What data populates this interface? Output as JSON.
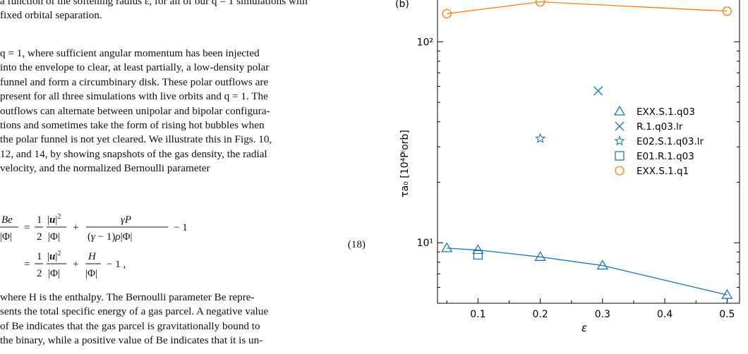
{
  "text": {
    "caption_line1": "a function of the softening radius ε, for all of our q = 1 simulations with",
    "caption_line2": "fixed orbital separation.",
    "para1_lines": [
      "q = 1, where sufficient angular momentum has been injected",
      "into the envelope to clear, at least partially, a low-density polar",
      "funnel and form a circumbinary disk. These polar outflows are",
      "present for all three simulations with live orbits and q = 1. The",
      "outflows can alternate between unipolar and bipolar configura-",
      "tions and sometimes take the form of rising hot bubbles when",
      "the polar funnel is not yet cleared. We illustrate this in Figs. 10,",
      "12, and 14, by showing snapshots of the gas density, the radial",
      "velocity, and the normalized Bernoulli parameter"
    ],
    "eq_number": "(18)",
    "para2_lines": [
      "where H is the enthalpy. The Bernoulli parameter Be repre-",
      "sents the total specific energy of a gas parcel. A negative value",
      "of Be indicates that the gas parcel is gravitationally bound to",
      "the binary, while a positive value of Be indicates that it is un-"
    ]
  },
  "chart_data": {
    "type": "scatter",
    "panel_label": "(b)",
    "xlabel": "ε",
    "ylabel": "τa₀ [10⁴Pⁱorb]",
    "xlim": [
      0.035,
      0.52
    ],
    "ylim": [
      5.0,
      175
    ],
    "yscale": "log",
    "x_ticks": [
      0.1,
      0.2,
      0.3,
      0.4,
      0.5
    ],
    "x_tick_labels": [
      "0.1",
      "0.2",
      "0.3",
      "0.4",
      "0.5"
    ],
    "y_ticks": [
      10,
      100
    ],
    "y_tick_labels": [
      "10¹",
      "10²"
    ],
    "legend_position": "right",
    "colors": {
      "blue": "#1f77b4",
      "orange": "#ff7f0e"
    },
    "series": [
      {
        "name": "EXX.S.1.q03",
        "marker": "triangle",
        "color": "#1f77b4",
        "line": true,
        "x": [
          0.05,
          0.1,
          0.2,
          0.3,
          0.5
        ],
        "y": [
          9.4,
          9.2,
          8.5,
          7.7,
          5.5
        ]
      },
      {
        "name": "R.1.q03.lr",
        "marker": "x",
        "color": "#1f77b4",
        "line": false,
        "x": [
          0.293
        ],
        "y": [
          57
        ]
      },
      {
        "name": "E02.S.1.q03.lr",
        "marker": "star",
        "color": "#1f77b4",
        "line": false,
        "x": [
          0.2
        ],
        "y": [
          33
        ]
      },
      {
        "name": "E01.R.1.q03",
        "marker": "square",
        "color": "#1f77b4",
        "line": false,
        "x": [
          0.1
        ],
        "y": [
          8.7
        ]
      },
      {
        "name": "EXX.S.1.q1",
        "marker": "circle",
        "color": "#ff7f0e",
        "line": true,
        "x": [
          0.05,
          0.2,
          0.5
        ],
        "y": [
          138,
          158,
          142
        ]
      }
    ]
  }
}
